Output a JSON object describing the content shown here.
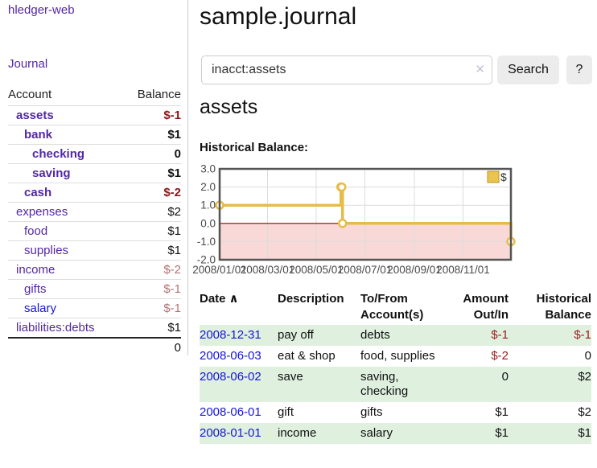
{
  "app": {
    "title": "hledger-web"
  },
  "colors": {
    "purple": "#5327a5",
    "blue": "#1515d6",
    "neg_bold": "#8c1717",
    "neg_strong": "#9b1c1c",
    "neg_muted": "#b47070",
    "row_green": "#dff0df"
  },
  "sidebar": {
    "journal_link": "Journal",
    "accounts_table": {
      "account_header": "Account",
      "balance_header": "Balance",
      "rows": [
        {
          "account": "assets",
          "indent": 1,
          "bold": true,
          "link": "purple",
          "balance": "$-1",
          "neg": true
        },
        {
          "account": "bank",
          "indent": 2,
          "bold": true,
          "link": "purple",
          "balance": "$1",
          "neg": false
        },
        {
          "account": "checking",
          "indent": 3,
          "bold": true,
          "link": "purple",
          "balance": "0",
          "neg": false
        },
        {
          "account": "saving",
          "indent": 3,
          "bold": true,
          "link": "purple",
          "balance": "$1",
          "neg": false
        },
        {
          "account": "cash",
          "indent": 2,
          "bold": true,
          "link": "purple",
          "balance": "$-2",
          "neg": true
        },
        {
          "account": "expenses",
          "indent": 1,
          "bold": false,
          "link": "purple",
          "balance": "$2",
          "neg": false
        },
        {
          "account": "food",
          "indent": 2,
          "bold": false,
          "link": "purple",
          "balance": "$1",
          "neg": false
        },
        {
          "account": "supplies",
          "indent": 2,
          "bold": false,
          "link": "purple",
          "balance": "$1",
          "neg": false
        },
        {
          "account": "income",
          "indent": 1,
          "bold": false,
          "link": "purple",
          "balance": "$-2",
          "neg": true
        },
        {
          "account": "gifts",
          "indent": 2,
          "bold": false,
          "link": "purple",
          "balance": "$-1",
          "neg": true
        },
        {
          "account": "salary",
          "indent": 2,
          "bold": false,
          "link": "blue",
          "balance": "$-1",
          "neg": true
        },
        {
          "account": "liabilities:debts",
          "indent": 1,
          "bold": false,
          "link": "purple",
          "balance": "$1",
          "neg": false
        }
      ],
      "total": "0"
    }
  },
  "header": {
    "title": "sample.journal"
  },
  "search": {
    "value": "inacct:assets",
    "clear_icon": "✕",
    "button_label": "Search",
    "help_label": "?"
  },
  "account_page": {
    "title": "assets",
    "chart_label": "Historical Balance:"
  },
  "chart_data": {
    "type": "line",
    "style": "step-after",
    "title": "Historical Balance:",
    "legend": {
      "label": "$",
      "position": "top-right"
    },
    "ylim": [
      -2.0,
      3.0
    ],
    "y_ticks": [
      3.0,
      2.0,
      1.0,
      0.0,
      -1.0,
      -2.0
    ],
    "x_domain_days": [
      0,
      365
    ],
    "x_ticks": [
      {
        "day": 0,
        "label": "2008/01/01"
      },
      {
        "day": 60,
        "label": "2008/03/01"
      },
      {
        "day": 121,
        "label": "2008/05/01"
      },
      {
        "day": 182,
        "label": "2008/07/01"
      },
      {
        "day": 244,
        "label": "2008/09/01"
      },
      {
        "day": 305,
        "label": "2008/11/01"
      }
    ],
    "series": [
      {
        "name": "$",
        "points": [
          {
            "date": "2008-01-01",
            "day": 0,
            "value": 1
          },
          {
            "date": "2008-06-01",
            "day": 152,
            "value": 2
          },
          {
            "date": "2008-06-02",
            "day": 153,
            "value": 2
          },
          {
            "date": "2008-06-03",
            "day": 154,
            "value": 0
          },
          {
            "date": "2008-12-31",
            "day": 365,
            "value": -1
          }
        ]
      }
    ],
    "colors": {
      "line": "#e6bc47",
      "marker_fill": "#ffffff",
      "negative_fill": "#f9d8d8",
      "zero_line": "#990000",
      "grid": "#dcdcdc",
      "border": "#545454",
      "tick_text": "#4a4a4a",
      "legend_fill": "#eac44d",
      "legend_border": "#bb9326"
    }
  },
  "register": {
    "headers": {
      "date": "Date",
      "sort_icon": "∧",
      "description": "Description",
      "tofrom_line1": "To/From",
      "tofrom_line2": "Account(s)",
      "amount_line1": "Amount",
      "amount_line2": "Out/In",
      "hist_line1": "Historical",
      "hist_line2": "Balance"
    },
    "rows": [
      {
        "date": "2008-12-31",
        "description": "pay off",
        "accounts": "debts",
        "amount": "$-1",
        "amount_neg": true,
        "balance": "$-1",
        "balance_neg": true,
        "shaded": true
      },
      {
        "date": "2008-06-03",
        "description": "eat & shop",
        "accounts": "food, supplies",
        "amount": "$-2",
        "amount_neg": true,
        "balance": "0",
        "balance_neg": false,
        "shaded": false
      },
      {
        "date": "2008-06-02",
        "description": "save",
        "accounts": "saving, checking",
        "amount": "0",
        "amount_neg": false,
        "balance": "$2",
        "balance_neg": false,
        "shaded": true
      },
      {
        "date": "2008-06-01",
        "description": "gift",
        "accounts": "gifts",
        "amount": "$1",
        "amount_neg": false,
        "balance": "$2",
        "balance_neg": false,
        "shaded": false
      },
      {
        "date": "2008-01-01",
        "description": "income",
        "accounts": "salary",
        "amount": "$1",
        "amount_neg": false,
        "balance": "$1",
        "balance_neg": false,
        "shaded": true
      }
    ]
  }
}
